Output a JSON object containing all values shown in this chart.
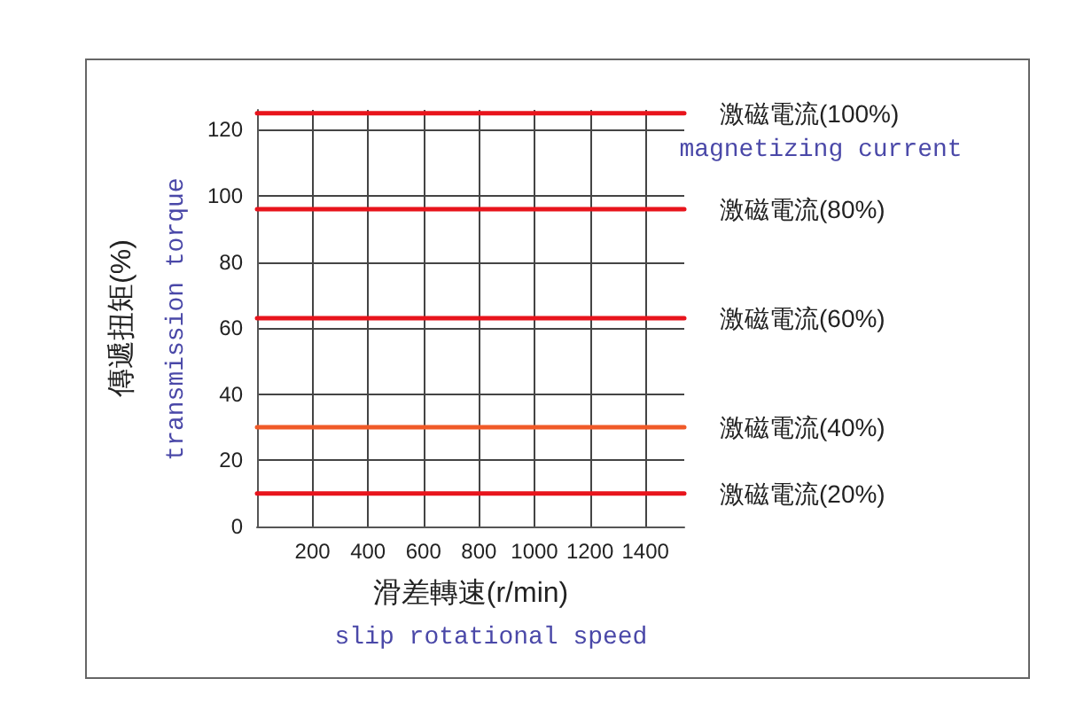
{
  "chart_data": {
    "type": "line",
    "xlabel": "滑差轉速(r/min)",
    "ylabel": "傳遞扭矩(%)",
    "annotations": [
      "transmission torque",
      "slip rotational speed",
      "magnetizing current"
    ],
    "x": [
      0,
      1540
    ],
    "xlim": [
      0,
      1540
    ],
    "xticks": [
      {
        "value": 0,
        "label": null
      },
      200,
      400,
      600,
      800,
      1000,
      1200,
      1400
    ],
    "ylim": [
      0,
      126
    ],
    "yticks": [
      0,
      20,
      40,
      60,
      80,
      100,
      120
    ],
    "grid": true,
    "legend": false,
    "marker": "none",
    "line_style": "solid",
    "series": [
      {
        "name": "激磁電流(100%)",
        "color": "#e8141c",
        "values": [
          125,
          125
        ]
      },
      {
        "name": "激磁電流(80%)",
        "color": "#e8141c",
        "values": [
          96,
          96
        ]
      },
      {
        "name": "激磁電流(60%)",
        "color": "#e8141c",
        "values": [
          63,
          63
        ]
      },
      {
        "name": "激磁電流(40%)",
        "color": "#f05a28",
        "values": [
          30,
          30
        ]
      },
      {
        "name": "激磁電流(20%)",
        "color": "#e8141c",
        "values": [
          10,
          10
        ]
      }
    ]
  }
}
